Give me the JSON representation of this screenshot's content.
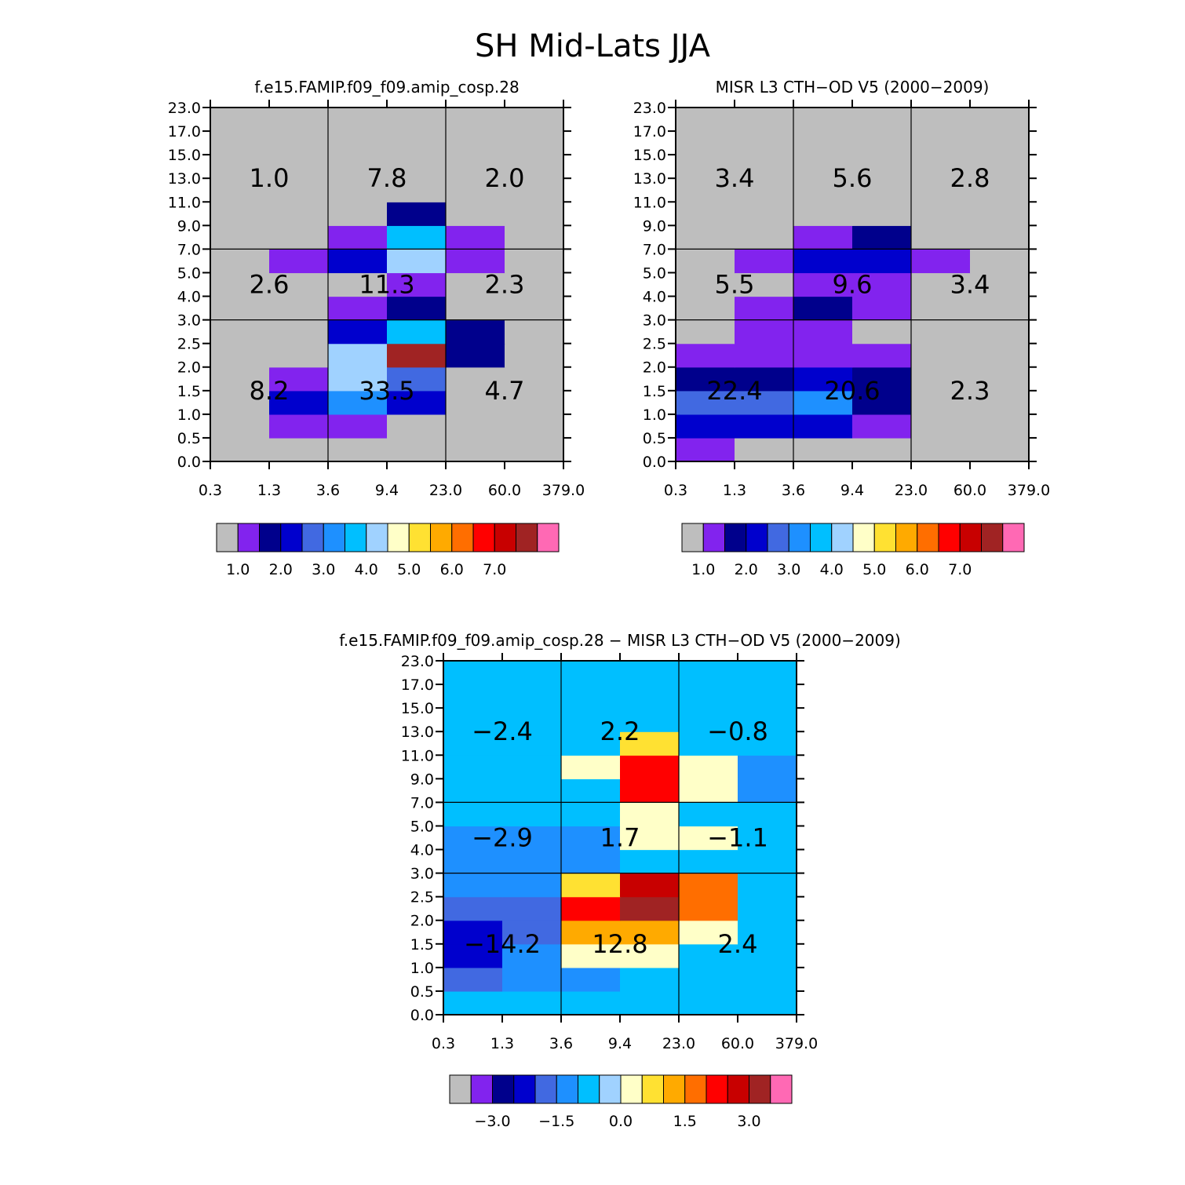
{
  "title": "SH Mid-Lats JJA",
  "chart_data": [
    {
      "type": "heatmap",
      "id": "model",
      "title": "f.e15.FAMIP.f09_f09.amip_cosp.28",
      "x_ticks": [
        "0.3",
        "1.3",
        "3.6",
        "9.4",
        "23.0",
        "60.0",
        "379.0"
      ],
      "y_ticks": [
        "0.0",
        "0.5",
        "1.0",
        "1.5",
        "2.0",
        "2.5",
        "3.0",
        "4.0",
        "5.0",
        "7.0",
        "9.0",
        "11.0",
        "13.0",
        "15.0",
        "17.0",
        "23.0"
      ],
      "xlabel": "",
      "ylabel": "",
      "levels": [
        1.0,
        1.5,
        2.0,
        2.5,
        3.0,
        3.5,
        4.0,
        4.5,
        5.0,
        5.5,
        6.0,
        6.5,
        7.0,
        7.5
      ],
      "cells": [
        [
          0.8,
          0.0,
          0.0,
          0.0,
          0.0,
          0.0
        ],
        [
          0.8,
          1.2,
          1.2,
          0.8,
          0.0,
          0.0
        ],
        [
          0.8,
          2.2,
          3.3,
          2.2,
          0.0,
          0.0
        ],
        [
          0.0,
          1.2,
          4.3,
          2.8,
          0.0,
          0.0
        ],
        [
          0.0,
          0.8,
          4.3,
          7.8,
          1.8,
          0.0
        ],
        [
          0.0,
          0.0,
          2.2,
          3.8,
          1.8,
          0.0
        ],
        [
          0.0,
          0.0,
          1.2,
          1.8,
          0.8,
          0.0
        ],
        [
          0.0,
          0.0,
          0.8,
          1.2,
          0.0,
          0.0
        ],
        [
          0.0,
          1.2,
          2.2,
          4.3,
          1.2,
          0.0
        ],
        [
          0.0,
          0.8,
          1.2,
          3.8,
          1.2,
          0.0
        ],
        [
          0.0,
          0.0,
          0.8,
          1.8,
          0.8,
          0.0
        ],
        [
          0.0,
          0.0,
          0.0,
          0.0,
          0.0,
          0.0
        ],
        [
          0.0,
          0.0,
          0.0,
          0.0,
          0.0,
          0.0
        ],
        [
          0.0,
          0.0,
          0.0,
          0.0,
          0.0,
          0.0
        ],
        [
          0.0,
          0.0,
          0.0,
          0.0,
          0.0,
          0.0
        ]
      ],
      "box_values": [
        [
          "8.2",
          "33.5",
          "4.7"
        ],
        [
          "2.6",
          "11.3",
          "2.3"
        ],
        [
          "1.0",
          "7.8",
          "2.0"
        ]
      ],
      "colorbar_labels": [
        "1.0",
        "2.0",
        "3.0",
        "4.0",
        "5.0",
        "6.0",
        "7.0"
      ]
    },
    {
      "type": "heatmap",
      "id": "obs",
      "title": "MISR L3 CTH-OD V5 (2000-2009)",
      "x_ticks": [
        "0.3",
        "1.3",
        "3.6",
        "9.4",
        "23.0",
        "60.0",
        "379.0"
      ],
      "y_ticks": [
        "0.0",
        "0.5",
        "1.0",
        "1.5",
        "2.0",
        "2.5",
        "3.0",
        "4.0",
        "5.0",
        "7.0",
        "9.0",
        "11.0",
        "13.0",
        "15.0",
        "17.0",
        "23.0"
      ],
      "xlabel": "",
      "ylabel": "",
      "levels": [
        1.0,
        1.5,
        2.0,
        2.5,
        3.0,
        3.5,
        4.0,
        4.5,
        5.0,
        5.5,
        6.0,
        6.5,
        7.0,
        7.5
      ],
      "cells": [
        [
          1.2,
          0.8,
          0.8,
          0.0,
          0.0,
          0.0
        ],
        [
          2.2,
          2.2,
          2.2,
          1.2,
          0.0,
          0.0
        ],
        [
          2.8,
          2.8,
          3.3,
          1.8,
          0.0,
          0.0
        ],
        [
          1.8,
          1.8,
          2.2,
          1.8,
          0.0,
          0.0
        ],
        [
          1.2,
          1.2,
          1.2,
          1.2,
          0.0,
          0.0
        ],
        [
          0.8,
          1.2,
          1.2,
          0.8,
          0.0,
          0.0
        ],
        [
          0.8,
          1.2,
          1.8,
          1.2,
          0.0,
          0.0
        ],
        [
          0.8,
          0.8,
          1.2,
          1.2,
          0.0,
          0.0
        ],
        [
          0.8,
          1.2,
          2.2,
          2.2,
          1.2,
          0.8
        ],
        [
          0.8,
          0.8,
          1.2,
          1.8,
          0.8,
          0.8
        ],
        [
          0.0,
          0.8,
          0.8,
          0.8,
          0.8,
          0.0
        ],
        [
          0.0,
          0.0,
          0.0,
          0.0,
          0.0,
          0.0
        ],
        [
          0.0,
          0.0,
          0.0,
          0.0,
          0.0,
          0.0
        ],
        [
          0.0,
          0.0,
          0.0,
          0.0,
          0.0,
          0.0
        ],
        [
          0.0,
          0.0,
          0.0,
          0.0,
          0.0,
          0.0
        ]
      ],
      "box_values": [
        [
          "22.4",
          "20.6",
          "2.3"
        ],
        [
          "5.5",
          "9.6",
          "3.4"
        ],
        [
          "3.4",
          "5.6",
          "2.8"
        ]
      ],
      "colorbar_labels": [
        "1.0",
        "2.0",
        "3.0",
        "4.0",
        "5.0",
        "6.0",
        "7.0"
      ]
    },
    {
      "type": "heatmap",
      "id": "diff",
      "title": "f.e15.FAMIP.f09_f09.amip_cosp.28 - MISR L3 CTH-OD V5 (2000-2009)",
      "x_ticks": [
        "0.3",
        "1.3",
        "3.6",
        "9.4",
        "23.0",
        "60.0",
        "379.0"
      ],
      "y_ticks": [
        "0.0",
        "0.5",
        "1.0",
        "1.5",
        "2.0",
        "2.5",
        "3.0",
        "4.0",
        "5.0",
        "7.0",
        "9.0",
        "11.0",
        "13.0",
        "15.0",
        "17.0",
        "23.0"
      ],
      "xlabel": "",
      "ylabel": "",
      "levels": [
        -3.5,
        -3.0,
        -2.5,
        -2.0,
        -1.5,
        -1.0,
        -0.5,
        0.0,
        0.5,
        1.0,
        1.5,
        2.0,
        2.5,
        3.0
      ],
      "cells": [
        [
          -0.8,
          -0.8,
          -0.8,
          -0.8,
          -0.8,
          -0.8
        ],
        [
          -1.8,
          -1.2,
          -1.2,
          -0.8,
          -0.8,
          -0.8
        ],
        [
          -2.2,
          -1.2,
          0.2,
          0.2,
          -0.8,
          -0.8
        ],
        [
          -2.2,
          -1.8,
          1.2,
          1.2,
          0.2,
          -0.8
        ],
        [
          -1.8,
          -1.8,
          2.2,
          3.3,
          1.8,
          -0.8
        ],
        [
          -1.2,
          -1.2,
          0.8,
          2.7,
          1.8,
          -0.8
        ],
        [
          -1.2,
          -1.2,
          -1.2,
          -0.8,
          -0.8,
          -0.8
        ],
        [
          -1.2,
          -1.2,
          -1.2,
          0.2,
          0.2,
          -0.8
        ],
        [
          -0.8,
          -0.8,
          -0.8,
          0.2,
          -0.8,
          -0.8
        ],
        [
          -0.8,
          -0.8,
          -0.8,
          2.2,
          0.2,
          -1.2
        ],
        [
          -0.8,
          -0.8,
          0.2,
          2.2,
          0.2,
          -1.2
        ],
        [
          -0.8,
          -0.8,
          -0.8,
          0.8,
          -0.8,
          -0.8
        ],
        [
          -0.8,
          -0.8,
          -0.8,
          -0.8,
          -0.8,
          -0.8
        ],
        [
          -0.8,
          -0.8,
          -0.8,
          -0.8,
          -0.8,
          -0.8
        ],
        [
          -0.8,
          -0.8,
          -0.8,
          -0.8,
          -0.8,
          -0.8
        ]
      ],
      "box_values": [
        [
          "-14.2",
          "12.8",
          "2.4"
        ],
        [
          "-2.9",
          "1.7",
          "-1.1"
        ],
        [
          "-2.4",
          "2.2",
          "-0.8"
        ]
      ],
      "colorbar_labels": [
        "-3.0",
        "-1.5",
        "0.0",
        "1.5",
        "3.0"
      ]
    }
  ],
  "colors": {
    "palette": [
      "#bebebe",
      "#8223ee",
      "#00008c",
      "#0000cd",
      "#4169e1",
      "#1e90ff",
      "#00bfff",
      "#a0d2ff",
      "#ffffc8",
      "#ffe132",
      "#ffaa00",
      "#ff6e00",
      "#ff0000",
      "#c80000",
      "#a02323",
      "#ff69b4"
    ],
    "background": "#ffffff",
    "axis": "#000000"
  }
}
